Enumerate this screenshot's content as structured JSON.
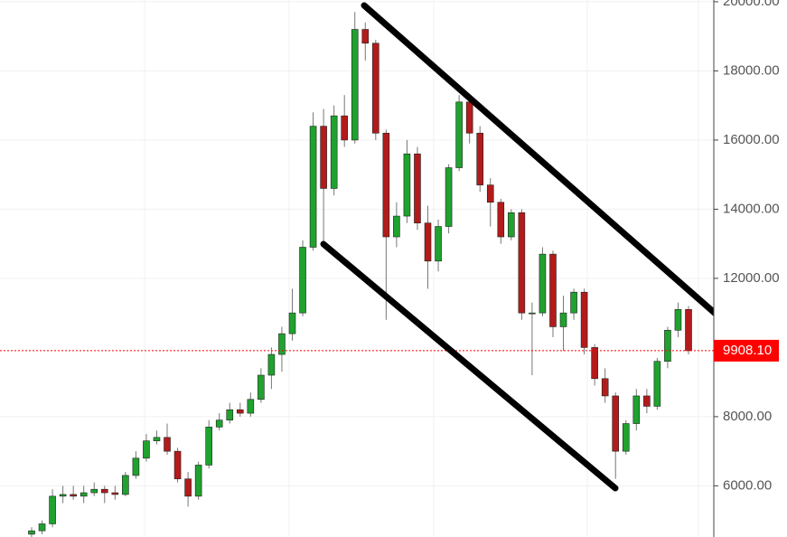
{
  "chart_data": {
    "type": "candlestick",
    "ylim": [
      4520,
      20050
    ],
    "yticks": [
      {
        "value": 6000,
        "label": "6000.00"
      },
      {
        "value": 8000,
        "label": "8000.00"
      },
      {
        "value": 12000,
        "label": "12000.00"
      },
      {
        "value": 14000,
        "label": "14000.00"
      },
      {
        "value": 16000,
        "label": "16000.00"
      },
      {
        "value": 18000,
        "label": "18000.00"
      },
      {
        "value": 20000,
        "label": "20000.00"
      }
    ],
    "grid": true,
    "up_color": "#1fa22e",
    "down_color": "#b31b1b",
    "last_price": {
      "value": 9908.1,
      "label": "9908.10",
      "color": "#ff0000"
    },
    "open": [
      4600,
      4700,
      4900,
      5700,
      5750,
      5700,
      5800,
      5900,
      5800,
      5750,
      6300,
      6800,
      7300,
      7400,
      7000,
      6200,
      5700,
      6600,
      7700,
      7900,
      8200,
      8100,
      8500,
      9200,
      9800,
      10400,
      11000,
      12900,
      16400,
      14600,
      16700,
      16000,
      19200,
      18800,
      16200,
      13200,
      13800,
      15600,
      13600,
      12500,
      13500,
      15200,
      17100,
      16200,
      14700,
      14200,
      13200,
      13900,
      11000,
      11000,
      12700,
      10600,
      11000,
      11600,
      10000,
      9100,
      8600,
      7000,
      7800,
      8600,
      8300,
      9600,
      10500,
      11100
    ],
    "high": [
      4800,
      5000,
      5900,
      6000,
      6000,
      6000,
      6100,
      6000,
      6000,
      6400,
      7000,
      7500,
      7600,
      7800,
      7100,
      6400,
      6700,
      7900,
      8100,
      8400,
      8400,
      8700,
      9400,
      10000,
      10600,
      11700,
      13100,
      16800,
      16900,
      17000,
      17300,
      19700,
      19400,
      18900,
      16300,
      14200,
      16000,
      15800,
      14100,
      13700,
      15300,
      17300,
      17200,
      16400,
      14900,
      14300,
      14000,
      14000,
      11300,
      12900,
      12800,
      11500,
      11700,
      11700,
      10100,
      9400,
      8700,
      7900,
      8800,
      8800,
      9700,
      10600,
      11300,
      11200
    ],
    "low": [
      4500,
      4600,
      4800,
      5500,
      5600,
      5500,
      5700,
      5500,
      5600,
      5700,
      6200,
      6700,
      7200,
      6900,
      6100,
      5400,
      5600,
      6500,
      7600,
      7800,
      8000,
      8000,
      8400,
      8800,
      9300,
      10200,
      10900,
      12800,
      13000,
      14400,
      15800,
      15900,
      18300,
      16000,
      10800,
      12900,
      13600,
      13400,
      11700,
      12200,
      13300,
      15100,
      15900,
      14500,
      13500,
      13000,
      13100,
      10800,
      9200,
      10900,
      10300,
      9900,
      10800,
      9800,
      8900,
      8400,
      6200,
      6900,
      7600,
      8100,
      8200,
      9400,
      10300,
      9800
    ],
    "close": [
      4700,
      4900,
      5700,
      5750,
      5700,
      5800,
      5900,
      5800,
      5750,
      6300,
      6800,
      7300,
      7400,
      7000,
      6200,
      5700,
      6600,
      7700,
      7900,
      8200,
      8100,
      8500,
      9200,
      9800,
      10400,
      11000,
      12900,
      16400,
      14600,
      16700,
      16000,
      19200,
      18800,
      16200,
      13200,
      13800,
      15600,
      13600,
      12500,
      13500,
      15200,
      17100,
      16200,
      14700,
      14200,
      13200,
      13900,
      11000,
      11000,
      12700,
      10600,
      11000,
      11600,
      10000,
      9100,
      8600,
      7000,
      7800,
      8600,
      8300,
      9600,
      10500,
      11100,
      9908.1
    ]
  }
}
